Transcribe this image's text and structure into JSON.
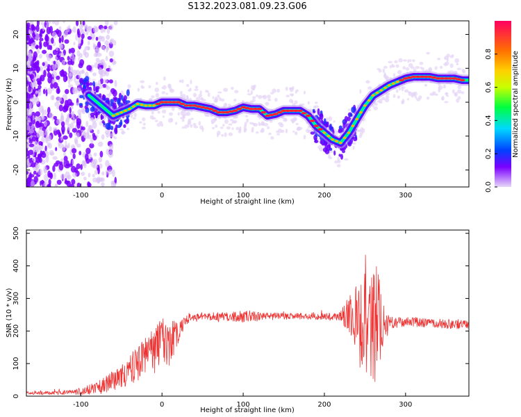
{
  "title": "S132.2023.081.09.23.G06",
  "chart_data": [
    {
      "type": "heatmap",
      "xlabel": "Height of straight line (km)",
      "ylabel": "Frequency (Hz)",
      "xlim": [
        -167,
        378
      ],
      "ylim": [
        -25,
        24
      ],
      "xticks": [
        -100,
        0,
        100,
        200,
        300
      ],
      "yticks": [
        -20,
        -10,
        0,
        10,
        20
      ],
      "grid": false,
      "colorbar": {
        "label": "Normalized spectral amplitude",
        "range": [
          0,
          1
        ],
        "ticks": [
          0.0,
          0.2,
          0.4,
          0.6,
          0.8
        ],
        "colors": [
          "#e8d8f8",
          "#7a00ff",
          "#0040ff",
          "#00d8ff",
          "#00ff40",
          "#c8ff00",
          "#ffd000",
          "#ff7000",
          "#ff0060"
        ]
      },
      "ridge": {
        "x": [
          -90,
          -80,
          -70,
          -60,
          -50,
          -40,
          -30,
          -20,
          -10,
          0,
          10,
          20,
          30,
          40,
          50,
          60,
          70,
          80,
          90,
          100,
          110,
          120,
          130,
          140,
          150,
          160,
          170,
          180,
          190,
          200,
          210,
          220,
          230,
          240,
          250,
          260,
          270,
          280,
          290,
          300,
          310,
          320,
          330,
          340,
          350,
          360,
          370,
          378
        ],
        "y": [
          2,
          0,
          -2,
          -4,
          -3,
          -2,
          -0.5,
          -1,
          -1,
          0,
          0,
          0,
          -1,
          -1,
          -1.5,
          -2,
          -3,
          -3,
          -2.5,
          -1.5,
          -2,
          -2,
          -4,
          -3.5,
          -2.5,
          -2.5,
          -2.5,
          -4,
          -7,
          -9,
          -11,
          -12,
          -9,
          -5,
          -1,
          2,
          3.5,
          5,
          6,
          7,
          7.5,
          7.5,
          7.5,
          7,
          7,
          7,
          6.5,
          6.5
        ]
      }
    },
    {
      "type": "line",
      "xlabel": "Height of straight line (km)",
      "ylabel": "SNR (10 * v/v)",
      "xlim": [
        -167,
        378
      ],
      "ylim": [
        0,
        510
      ],
      "xticks": [
        -100,
        0,
        100,
        200,
        300
      ],
      "yticks": [
        0,
        100,
        200,
        300,
        400,
        500
      ],
      "grid": false,
      "color": "#ee3333",
      "envelope": {
        "x": [
          -167,
          -140,
          -110,
          -90,
          -70,
          -55,
          -40,
          -25,
          -10,
          0,
          10,
          20,
          30,
          50,
          80,
          100,
          130,
          160,
          190,
          210,
          220,
          230,
          240,
          250,
          260,
          265,
          270,
          280,
          300,
          330,
          360,
          378
        ],
        "mean": [
          10,
          10,
          12,
          20,
          35,
          55,
          80,
          110,
          140,
          160,
          165,
          195,
          235,
          245,
          245,
          245,
          245,
          245,
          245,
          245,
          245,
          250,
          240,
          220,
          220,
          220,
          220,
          225,
          230,
          225,
          220,
          220
        ],
        "amp": [
          5,
          6,
          8,
          15,
          25,
          35,
          45,
          60,
          70,
          80,
          70,
          35,
          15,
          12,
          15,
          20,
          12,
          10,
          10,
          12,
          15,
          60,
          110,
          170,
          180,
          190,
          100,
          20,
          15,
          15,
          15,
          12
        ]
      }
    }
  ]
}
